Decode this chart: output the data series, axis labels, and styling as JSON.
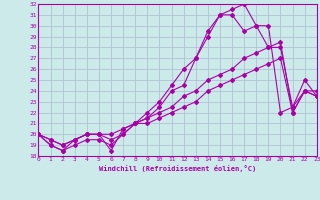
{
  "xlabel": "Windchill (Refroidissement éolien,°C)",
  "xlim": [
    0,
    23
  ],
  "ylim": [
    18,
    32
  ],
  "xticks": [
    0,
    1,
    2,
    3,
    4,
    5,
    6,
    7,
    8,
    9,
    10,
    11,
    12,
    13,
    14,
    15,
    16,
    17,
    18,
    19,
    20,
    21,
    22,
    23
  ],
  "yticks": [
    18,
    19,
    20,
    21,
    22,
    23,
    24,
    25,
    26,
    27,
    28,
    29,
    30,
    31,
    32
  ],
  "bg_color": "#cceaea",
  "grid_color": "#aabbcc",
  "line_color": "#aa00aa",
  "series": [
    {
      "x": [
        0,
        1,
        2,
        3,
        4,
        5,
        6,
        7,
        8,
        9,
        10,
        11,
        12,
        13,
        14,
        15,
        16,
        17,
        18,
        19,
        20,
        21,
        22,
        23
      ],
      "y": [
        20,
        19,
        18.5,
        19.5,
        20,
        20,
        18.5,
        20.5,
        21,
        22,
        23,
        24.5,
        26,
        27,
        29,
        31,
        31.5,
        32,
        30,
        30,
        22,
        22.5,
        24,
        24
      ]
    },
    {
      "x": [
        0,
        1,
        2,
        3,
        4,
        5,
        6,
        7,
        8,
        9,
        10,
        11,
        12,
        13,
        14,
        15,
        16,
        17,
        18,
        19,
        20,
        21,
        22,
        23
      ],
      "y": [
        20,
        19.5,
        19,
        19.5,
        20,
        20,
        20,
        20.5,
        21,
        21.5,
        22.5,
        24,
        24.5,
        27,
        29.5,
        31,
        31,
        29.5,
        30,
        28,
        28,
        22.5,
        25,
        23.5
      ]
    },
    {
      "x": [
        0,
        1,
        2,
        3,
        4,
        5,
        6,
        7,
        8,
        9,
        10,
        11,
        12,
        13,
        14,
        15,
        16,
        17,
        18,
        19,
        20,
        21,
        22,
        23
      ],
      "y": [
        20,
        19.5,
        19,
        19.5,
        20,
        20,
        19.5,
        20,
        21,
        21.5,
        22,
        22.5,
        23.5,
        24,
        25,
        25.5,
        26,
        27,
        27.5,
        28,
        28.5,
        22,
        24,
        23.5
      ]
    },
    {
      "x": [
        0,
        1,
        2,
        3,
        4,
        5,
        6,
        7,
        8,
        9,
        10,
        11,
        12,
        13,
        14,
        15,
        16,
        17,
        18,
        19,
        20,
        21,
        22,
        23
      ],
      "y": [
        20,
        19,
        18.5,
        19,
        19.5,
        19.5,
        19,
        20,
        21,
        21,
        21.5,
        22,
        22.5,
        23,
        24,
        24.5,
        25,
        25.5,
        26,
        26.5,
        27,
        22,
        24,
        23.5
      ]
    }
  ]
}
